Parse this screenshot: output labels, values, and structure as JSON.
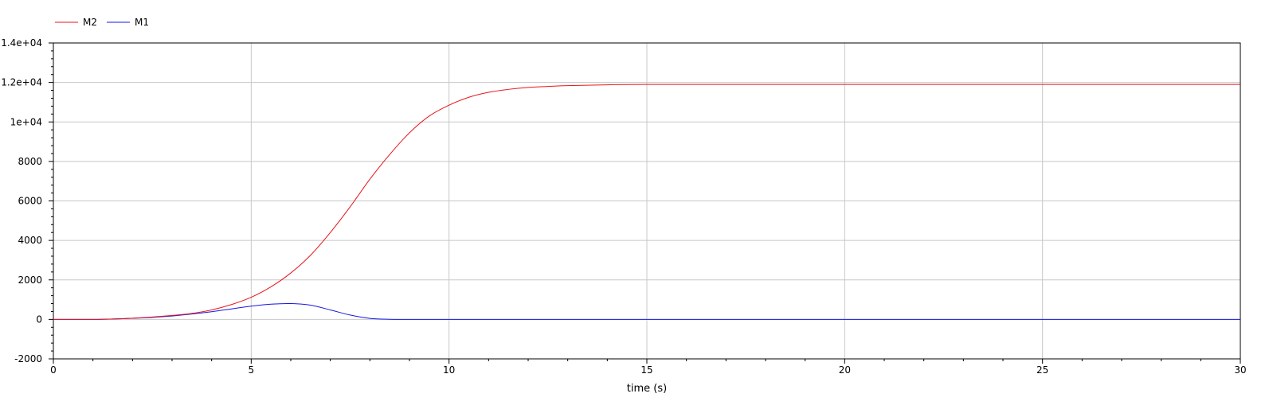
{
  "chart_data": {
    "type": "line",
    "title": "",
    "xlabel": "time (s)",
    "ylabel": "",
    "xlim": [
      0,
      30
    ],
    "ylim": [
      -2000,
      14000
    ],
    "grid": true,
    "legend_placement": "top-left",
    "x_ticks": [
      {
        "value": 0,
        "label": "0"
      },
      {
        "value": 5,
        "label": "5"
      },
      {
        "value": 10,
        "label": "10"
      },
      {
        "value": 15,
        "label": "15"
      },
      {
        "value": 20,
        "label": "20"
      },
      {
        "value": 25,
        "label": "25"
      },
      {
        "value": 30,
        "label": "30"
      }
    ],
    "y_ticks": [
      {
        "value": -2000,
        "label": "-2000"
      },
      {
        "value": 0,
        "label": "0"
      },
      {
        "value": 2000,
        "label": "2000"
      },
      {
        "value": 4000,
        "label": "4000"
      },
      {
        "value": 6000,
        "label": "6000"
      },
      {
        "value": 8000,
        "label": "8000"
      },
      {
        "value": 10000,
        "label": "1e+04"
      },
      {
        "value": 12000,
        "label": "1.2e+04"
      },
      {
        "value": 14000,
        "label": "1.4e+04"
      }
    ],
    "series": [
      {
        "name": "M2",
        "color": "#e8141c",
        "x": [
          0,
          1,
          1.5,
          2,
          2.5,
          3,
          3.5,
          4,
          4.5,
          5,
          5.5,
          6,
          6.5,
          7,
          7.5,
          8,
          8.5,
          9,
          9.5,
          10,
          10.5,
          11,
          11.5,
          12,
          12.5,
          13,
          14,
          15,
          20,
          25,
          30
        ],
        "y": [
          0,
          0,
          20,
          60,
          120,
          200,
          300,
          480,
          750,
          1120,
          1650,
          2350,
          3250,
          4400,
          5700,
          7100,
          8350,
          9450,
          10300,
          10850,
          11250,
          11500,
          11650,
          11750,
          11800,
          11840,
          11880,
          11900,
          11900,
          11900,
          11900
        ]
      },
      {
        "name": "M1",
        "color": "#1616e6",
        "x": [
          0,
          1,
          1.5,
          2,
          2.5,
          3,
          3.5,
          4,
          4.5,
          5,
          5.5,
          6,
          6.5,
          7,
          7.5,
          8,
          8.5,
          9,
          10,
          15,
          20,
          25,
          30
        ],
        "y": [
          0,
          0,
          20,
          55,
          100,
          170,
          270,
          390,
          530,
          670,
          770,
          800,
          720,
          480,
          220,
          50,
          5,
          0,
          0,
          0,
          0,
          0,
          0
        ]
      }
    ]
  }
}
